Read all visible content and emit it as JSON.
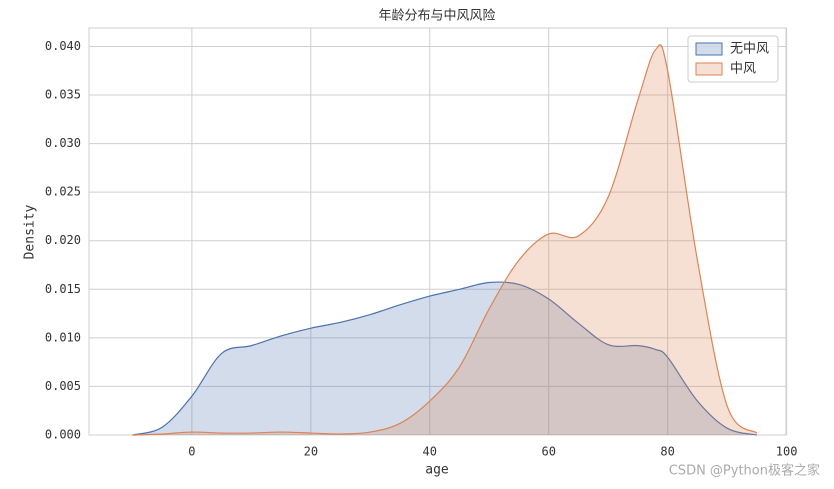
{
  "chart_data": {
    "type": "kde",
    "title": "年龄分布与中风风险",
    "x_label": "age",
    "y_label": "Density",
    "watermark": "CSDN @Python极客之家",
    "x": [
      -10,
      -5,
      0,
      5,
      10,
      15,
      20,
      25,
      30,
      35,
      40,
      45,
      50,
      55,
      60,
      65,
      70,
      75,
      78,
      80,
      85,
      90,
      95
    ],
    "series": [
      {
        "name": "无中风",
        "color": "#4c72b0",
        "values": [
          0.0,
          0.0008,
          0.004,
          0.0084,
          0.0092,
          0.0102,
          0.011,
          0.0116,
          0.0124,
          0.0134,
          0.0143,
          0.015,
          0.0157,
          0.0155,
          0.014,
          0.0115,
          0.0093,
          0.0092,
          0.0088,
          0.008,
          0.0035,
          0.0007,
          0.0
        ]
      },
      {
        "name": "中风",
        "color": "#dd8452",
        "values": [
          0.0,
          0.0001,
          0.0003,
          0.0002,
          0.0002,
          0.0003,
          0.0002,
          0.0001,
          0.0003,
          0.0012,
          0.0035,
          0.007,
          0.013,
          0.018,
          0.0207,
          0.0205,
          0.0245,
          0.0345,
          0.0397,
          0.0375,
          0.018,
          0.003,
          0.0002
        ]
      }
    ],
    "xlim": [
      -17.3,
      99.9
    ],
    "ylim": [
      0,
      0.0419
    ],
    "xticks": [
      0,
      20,
      40,
      60,
      80,
      100
    ],
    "yticks": [
      {
        "value": 0,
        "label": "0.000"
      },
      {
        "value": 0.005,
        "label": "0.005"
      },
      {
        "value": 0.01,
        "label": "0.010"
      },
      {
        "value": 0.015,
        "label": "0.015"
      },
      {
        "value": 0.02,
        "label": "0.020"
      },
      {
        "value": 0.025,
        "label": "0.025"
      },
      {
        "value": 0.03,
        "label": "0.030"
      },
      {
        "value": 0.035,
        "label": "0.035"
      },
      {
        "value": 0.04,
        "label": "0.040"
      }
    ],
    "grid": true,
    "legend": "upper right"
  }
}
